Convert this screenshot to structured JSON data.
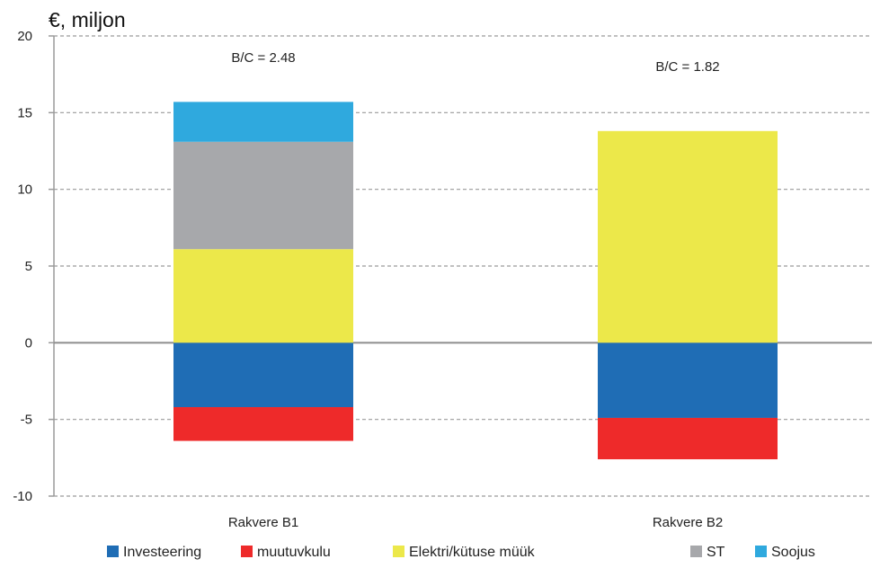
{
  "chart_data": {
    "type": "bar",
    "stacked": true,
    "unit_label": "€, miljon",
    "categories": [
      "Rakvere B1",
      "Rakvere B2"
    ],
    "series": [
      {
        "name": "Investeering",
        "color": "#1f6db5",
        "values": [
          -4.2,
          -4.9
        ]
      },
      {
        "name": "muutuvkulu",
        "color": "#ee2a2a",
        "values": [
          -2.2,
          -2.7
        ]
      },
      {
        "name": "Elektri/kütuse müük",
        "color": "#ece84a",
        "values": [
          6.1,
          13.8
        ]
      },
      {
        "name": "ST",
        "color": "#a7a8ab",
        "values": [
          7.0,
          0
        ]
      },
      {
        "name": "Soojus",
        "color": "#2fa9de",
        "values": [
          2.6,
          0
        ]
      }
    ],
    "annotations": [
      "B/C = 2.48",
      "B/C = 1.82"
    ],
    "ylim": [
      -10,
      20
    ],
    "yticks": [
      -10,
      -5,
      0,
      5,
      10,
      15,
      20
    ],
    "grid": true,
    "legend_position": "bottom"
  }
}
